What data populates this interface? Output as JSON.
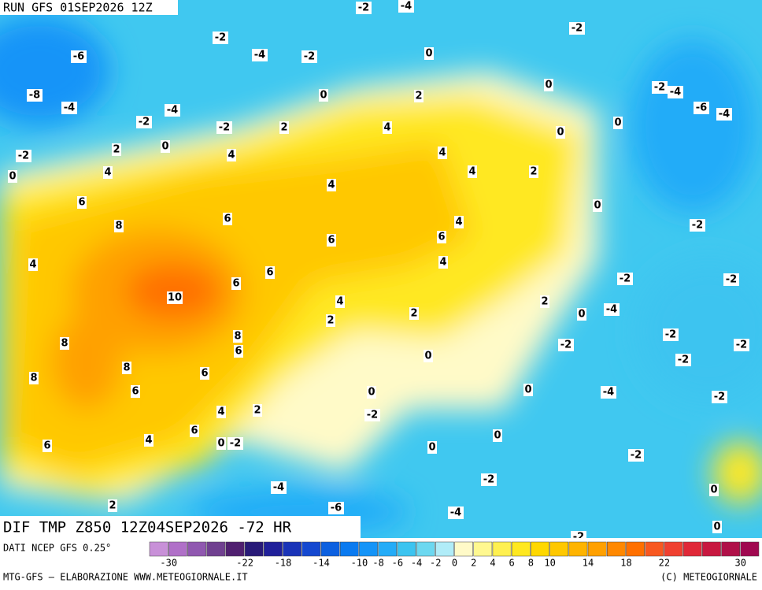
{
  "header": {
    "title": "RUN GFS 01SEP2026 12Z"
  },
  "map": {
    "caption": "DIF TMP Z850 12Z04SEP2026 -72 HR",
    "labels": [
      -2,
      -4,
      -2,
      -6,
      -4,
      -2,
      0,
      -2,
      -8,
      -4,
      0,
      2,
      0,
      -2,
      -4,
      -6,
      -4,
      -2,
      -4,
      -2,
      2,
      4,
      0,
      0,
      2,
      0,
      4,
      -2,
      0,
      4,
      4,
      4,
      2,
      4,
      6,
      6,
      0,
      4,
      8,
      -2,
      6,
      6,
      4,
      4,
      6,
      6,
      -2,
      -2,
      10,
      4,
      2,
      0,
      -4,
      2,
      2,
      8,
      -2,
      -2,
      8,
      6,
      -2,
      0,
      -2,
      8,
      6,
      8,
      6,
      0,
      0,
      -4,
      -2,
      4,
      2,
      -2,
      6,
      4,
      0,
      -2,
      0,
      0,
      6,
      -2,
      -2,
      -4,
      0,
      2,
      -6,
      -4,
      0,
      -2
    ]
  },
  "legend": {
    "source": "DATI NCEP GFS 0.25°",
    "colors": [
      "#c890d8",
      "#b070c8",
      "#9058b0",
      "#704090",
      "#502070",
      "#281a78",
      "#20209a",
      "#1a34b8",
      "#1448d0",
      "#0c60e0",
      "#0a7af0",
      "#1494f8",
      "#24acf8",
      "#3cc4f0",
      "#6cd8f0",
      "#b0ecf8",
      "#fffac8",
      "#fff890",
      "#fff050",
      "#ffe820",
      "#ffd800",
      "#ffc800",
      "#ffb400",
      "#ffa000",
      "#ff8800",
      "#ff7000",
      "#f85820",
      "#f04030",
      "#e02838",
      "#c81840",
      "#b01048",
      "#a00850"
    ],
    "range": [
      -32,
      32
    ],
    "ticks": [
      -30,
      -22,
      -18,
      -14,
      -10,
      -8,
      -6,
      -4,
      -2,
      0,
      2,
      4,
      6,
      8,
      10,
      14,
      18,
      22,
      30
    ]
  },
  "footer": {
    "left": "MTG-GFS — ELABORAZIONE WWW.METEOGIORNALE.IT",
    "right": "(C) METEOGIORNALE"
  }
}
